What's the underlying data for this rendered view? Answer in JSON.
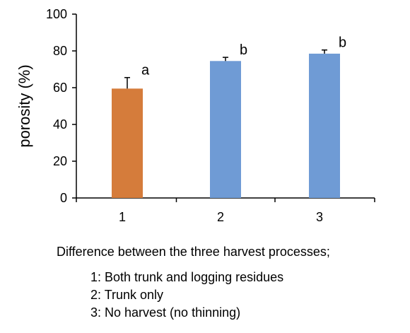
{
  "chart_data": {
    "type": "bar",
    "title": "",
    "xlabel": "",
    "ylabel": "porosity (%)",
    "ylim": [
      0,
      100
    ],
    "yticks": [
      0,
      20,
      40,
      60,
      80,
      100
    ],
    "categories": [
      "1",
      "2",
      "3"
    ],
    "values": [
      59.5,
      74.5,
      78.5
    ],
    "errors": [
      6.0,
      2.0,
      2.0
    ],
    "significance_letters": [
      "a",
      "b",
      "b"
    ],
    "bar_colors": [
      "#D57C3B",
      "#6F9BD5",
      "#6F9BD5"
    ],
    "grid": false,
    "legend": "none"
  },
  "notes": {
    "caption": "Difference between the three harvest processes;",
    "items": [
      "1: Both trunk and logging residues",
      "2: Trunk only",
      "3: No harvest (no thinning)"
    ]
  }
}
